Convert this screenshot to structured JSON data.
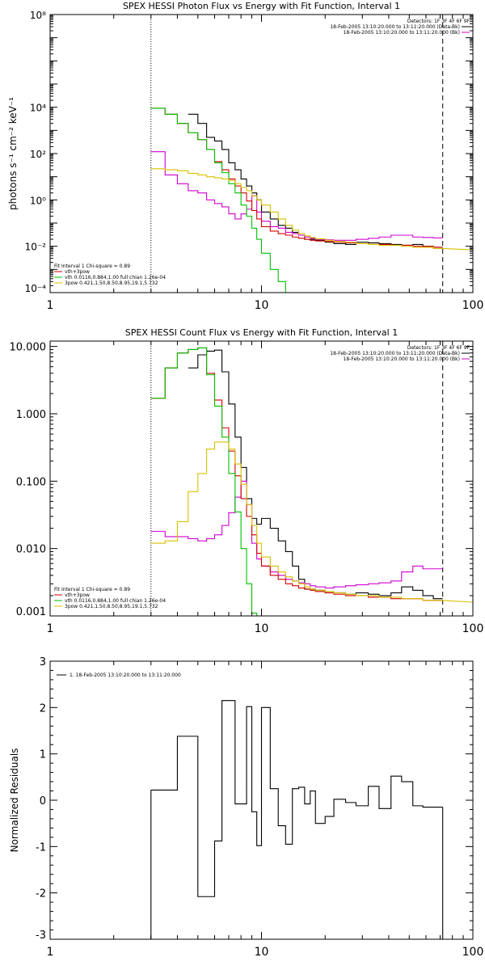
{
  "chart_data": [
    {
      "type": "line",
      "title": "SPEX HESSI Photon Flux vs Energy with Fit Function, Interval 1",
      "xlabel": "",
      "ylabel": "photons s⁻¹ cm⁻² keV⁻¹",
      "xscale": "log",
      "yscale": "log",
      "xlim": [
        1,
        100
      ],
      "ylim": [
        0.0001,
        100000000
      ],
      "xticks": [
        1,
        10,
        100
      ],
      "xtick_labels": [
        "1",
        "10",
        "100"
      ],
      "yticks": [
        0.0001,
        0.01,
        1,
        100,
        10000,
        100000000
      ],
      "ytick_labels": [
        "10⁻⁴",
        "10⁻²",
        "10⁰",
        "10²",
        "10⁴",
        "10⁸"
      ],
      "vlines": [
        {
          "x": 3,
          "style": "dotted"
        },
        {
          "x": 72,
          "style": "dashed"
        }
      ],
      "legend_top": {
        "lines": [
          "Detectors: 1F 3F 4F 6F 9F",
          "18-Feb-2005 13:10:20.000 to 13:11:20.000 (Data-Bk)",
          "18-Feb-2005 13:10:20.000 to 13:11:20.000 (Bk)"
        ],
        "colors": [
          "",
          "#000000",
          "#d000d0"
        ]
      },
      "legend_bottom": {
        "lines": [
          "Fit Interval  1    Chi-square = 0.89",
          "vth+3pow",
          "vth 0.0116,0.884,1.00  full chian 1.26e-04",
          "3pow 0.421,1.50,8.50,8.95,19.1,5.732"
        ],
        "colors": [
          "",
          "#d00000",
          "#00c000",
          "#d8c000"
        ]
      },
      "edges": [
        3.0,
        3.5,
        4.0,
        4.5,
        5.0,
        5.5,
        6.0,
        6.5,
        7.0,
        7.5,
        8.0,
        8.5,
        9.0,
        9.5,
        10.0,
        11.0,
        12.0,
        13.0,
        14.0,
        15.0,
        16.0,
        17.0,
        18.0,
        20.0,
        22.0,
        25.0,
        28.0,
        32.0,
        36.0,
        41.0,
        46.0,
        52.0,
        58.0,
        65.0,
        72.0
      ],
      "series": [
        {
          "name": "Data-Bk",
          "color": "#000000",
          "values": [
            null,
            null,
            null,
            5000,
            2000,
            500,
            350,
            150,
            40,
            20,
            8,
            4,
            2,
            1.0,
            0.3,
            0.15,
            0.08,
            0.06,
            0.04,
            0.03,
            0.02,
            0.02,
            0.018,
            0.015,
            0.013,
            0.012,
            0.015,
            0.014,
            0.013,
            0.012,
            0.011,
            0.012,
            0.01,
            0.009
          ]
        },
        {
          "name": "Bk",
          "color": "#d000d0",
          "values": [
            120,
            12,
            5,
            2.5,
            2,
            1.0,
            0.7,
            0.5,
            0.25,
            0.15,
            0.25,
            0.4,
            1.5,
            0.3,
            0.12,
            0.07,
            0.06,
            0.04,
            0.035,
            0.03,
            0.025,
            0.022,
            0.02,
            0.019,
            0.018,
            0.018,
            0.02,
            0.022,
            0.025,
            0.03,
            0.03,
            0.025,
            0.024,
            0.023
          ]
        },
        {
          "name": "vth+3pow",
          "color": "#d00000",
          "values": [
            9000,
            5000,
            2000,
            800,
            400,
            150,
            45,
            20,
            8,
            4,
            2,
            0.9,
            0.35,
            0.15,
            0.07,
            0.045,
            0.035,
            0.03,
            0.025,
            0.022,
            0.02,
            0.018,
            0.017,
            0.016,
            0.015,
            0.014,
            0.013,
            0.012,
            0.012,
            0.011,
            0.011,
            0.01,
            0.01,
            0.009
          ]
        },
        {
          "name": "vth",
          "color": "#00c000",
          "values": [
            9000,
            5000,
            2000,
            800,
            400,
            150,
            40,
            15,
            5,
            2,
            0.6,
            0.2,
            0.06,
            0.02,
            0.005,
            0.001,
            0.0003,
            7e-05
          ]
        },
        {
          "name": "3pow",
          "color": "#d8c000",
          "values": [
            22,
            20,
            18,
            14,
            12,
            10,
            9,
            8,
            7,
            5,
            3.5,
            2.5,
            1.5,
            1.0,
            0.6,
            0.3,
            0.15,
            0.08,
            0.05,
            0.035,
            0.028,
            0.024,
            0.021,
            0.018,
            0.016,
            0.015,
            0.013,
            0.012,
            0.011,
            0.011,
            0.01,
            0.009,
            0.009,
            0.008
          ]
        }
      ],
      "tail": {
        "series": "3pow",
        "end_x": 100,
        "end_value": 0.007
      }
    },
    {
      "type": "line",
      "title": "SPEX HESSI Count Flux vs Energy with Fit Function, Interval 1",
      "xlabel": "",
      "ylabel": "",
      "xscale": "log",
      "yscale": "log",
      "xlim": [
        1,
        100
      ],
      "ylim": [
        0.001,
        12
      ],
      "xticks": [
        1,
        10,
        100
      ],
      "xtick_labels": [
        "1",
        "10",
        "100"
      ],
      "yticks": [
        0.001,
        0.01,
        0.1,
        1,
        10
      ],
      "ytick_labels": [
        "0.001",
        "0.010",
        "0.100",
        "1.000",
        "10.000"
      ],
      "vlines": [
        {
          "x": 3,
          "style": "dotted"
        },
        {
          "x": 72,
          "style": "dashed"
        }
      ],
      "legend_top": {
        "lines": [
          "Detectors: 1F 3F 4F 6F 9F",
          "18-Feb-2005 13:10:20.000 to 13:11:20.000 (Data-Bk)",
          "18-Feb-2005 13:10:20.000 to 13:11:20.000 (Bk)"
        ],
        "colors": [
          "",
          "#000000",
          "#d000d0"
        ]
      },
      "legend_bottom": {
        "lines": [
          "Fit Interval  1    Chi-square = 0.89",
          "vth+3pow",
          "vth 0.0116,0.884,1.00  full chian 1.26e-04",
          "3pow 0.421,1.50,8.50,8.95,19.1,5.732"
        ],
        "colors": [
          "",
          "#d00000",
          "#00c000",
          "#d8c000"
        ]
      },
      "edges": [
        3.0,
        3.5,
        4.0,
        4.5,
        5.0,
        5.5,
        6.0,
        6.5,
        7.0,
        7.5,
        8.0,
        8.5,
        9.0,
        9.5,
        10.0,
        11.0,
        12.0,
        13.0,
        14.0,
        15.0,
        16.0,
        17.0,
        18.0,
        20.0,
        22.0,
        25.0,
        28.0,
        32.0,
        36.0,
        41.0,
        46.0,
        52.0,
        58.0,
        65.0,
        72.0
      ],
      "series": [
        {
          "name": "Data-Bk",
          "color": "#000000",
          "values": [
            null,
            null,
            null,
            4.8,
            7.5,
            8.5,
            8.8,
            4.2,
            1.4,
            0.45,
            0.16,
            0.055,
            0.028,
            0.023,
            0.028,
            0.02,
            0.013,
            0.009,
            0.0055,
            0.0035,
            0.0025,
            0.0025,
            0.0024,
            0.0022,
            0.0022,
            0.0021,
            0.0022,
            0.0021,
            0.002,
            0.0022,
            0.0027,
            0.0024,
            0.002,
            0.0018
          ]
        },
        {
          "name": "Bk",
          "color": "#d000d0",
          "values": [
            0.018,
            0.015,
            0.015,
            0.014,
            0.013,
            0.014,
            0.016,
            0.022,
            0.034,
            0.058,
            0.1,
            0.045,
            0.012,
            0.007,
            0.0055,
            0.0045,
            0.004,
            0.0035,
            0.0033,
            0.0031,
            0.003,
            0.0028,
            0.0027,
            0.0026,
            0.0027,
            0.0028,
            0.0029,
            0.003,
            0.0031,
            0.0033,
            0.0045,
            0.0055,
            0.005,
            0.005
          ]
        },
        {
          "name": "vth+3pow",
          "color": "#d00000",
          "values": [
            1.7,
            4.8,
            8.0,
            9.0,
            9.5,
            4.0,
            1.6,
            0.62,
            0.28,
            0.12,
            0.055,
            0.03,
            0.016,
            0.0085,
            0.0055,
            0.004,
            0.0035,
            0.003,
            0.0028,
            0.0026,
            0.0025,
            0.0024,
            0.0023,
            0.0022,
            0.0021,
            0.002,
            0.002,
            0.0019,
            0.0019,
            0.0018,
            0.0018,
            0.0018,
            0.0017,
            0.0017
          ]
        },
        {
          "name": "vth",
          "color": "#00c000",
          "values": [
            1.7,
            4.8,
            8.0,
            9.0,
            9.5,
            3.8,
            1.3,
            0.45,
            0.13,
            0.035,
            0.01,
            0.003,
            0.0011,
            0.0009
          ]
        },
        {
          "name": "3pow",
          "color": "#d8c000",
          "values": [
            0.012,
            0.013,
            0.025,
            0.07,
            0.13,
            0.3,
            0.38,
            0.38,
            0.3,
            0.18,
            0.09,
            0.045,
            0.022,
            0.012,
            0.0075,
            0.0055,
            0.0045,
            0.0038,
            0.0033,
            0.003,
            0.0027,
            0.0025,
            0.0024,
            0.0023,
            0.0022,
            0.0021,
            0.002,
            0.002,
            0.0019,
            0.0019,
            0.0018,
            0.0018,
            0.0017,
            0.0017
          ]
        }
      ],
      "tail": {
        "series": "3pow",
        "end_x": 100,
        "end_value": 0.0016
      }
    },
    {
      "type": "line",
      "title": "",
      "xlabel": "",
      "ylabel": "Normalized Residuals",
      "xscale": "log",
      "yscale": "linear",
      "xlim": [
        1,
        100
      ],
      "ylim": [
        -3,
        3
      ],
      "xticks": [
        1,
        10,
        100
      ],
      "xtick_labels": [
        "1",
        "10",
        "100"
      ],
      "yticks": [
        -3,
        -2,
        -1,
        0,
        1,
        2,
        3
      ],
      "ytick_labels": [
        "-3",
        "-2",
        "-1",
        "0",
        "1",
        "2",
        "3"
      ],
      "legend": {
        "lines": [
          "1. 18-Feb-2005 13:10:20.000 to 13:11:20.000"
        ],
        "colors": [
          "#000000"
        ]
      },
      "edges": [
        3.0,
        3.5,
        4.0,
        4.5,
        5.0,
        5.5,
        6.0,
        6.5,
        7.0,
        7.5,
        8.0,
        8.5,
        9.0,
        9.5,
        10.0,
        11.0,
        12.0,
        13.0,
        14.0,
        15.0,
        16.0,
        17.0,
        18.0,
        20.0,
        22.0,
        25.0,
        28.0,
        32.0,
        36.0,
        41.0,
        46.0,
        52.0,
        58.0,
        65.0,
        72.0
      ],
      "series": [
        {
          "name": "1. 18-Feb-2005 13:10:20.000 to 13:11:20.000",
          "color": "#000000",
          "values": [
            0.22,
            0.22,
            1.38,
            1.38,
            -2.08,
            -2.08,
            -0.88,
            2.15,
            2.15,
            -0.08,
            -0.08,
            2.02,
            -0.25,
            -0.98,
            2.0,
            0.25,
            -0.55,
            -0.95,
            0.25,
            0.28,
            -0.08,
            0.2,
            -0.5,
            -0.35,
            0.02,
            -0.05,
            -0.12,
            0.3,
            -0.18,
            0.52,
            0.4,
            -0.12,
            -0.15,
            -0.15
          ]
        }
      ],
      "drop_lines": [
        {
          "x": 3.0,
          "from": 0.22,
          "to": -3
        },
        {
          "x": 72.0,
          "from": -0.15,
          "to": -3
        }
      ]
    }
  ]
}
